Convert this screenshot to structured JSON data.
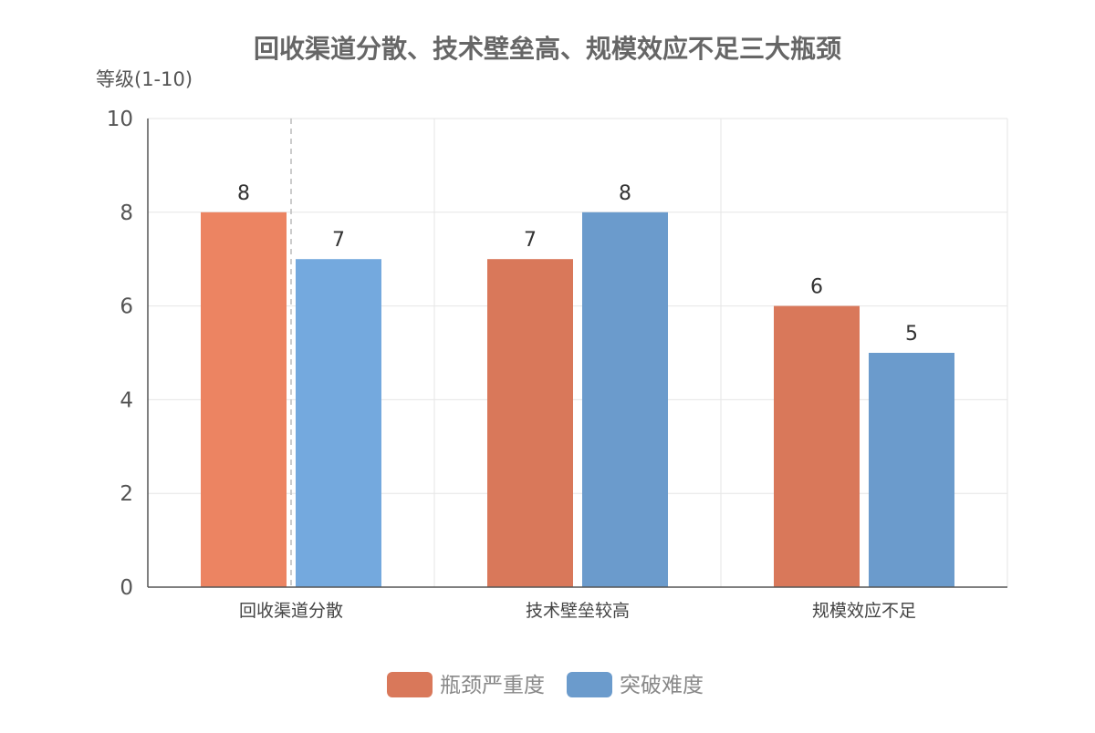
{
  "chart_data": {
    "type": "bar",
    "title": "回收渠道分散、技术壁垒高、规模效应不足三大瓶颈",
    "xlabel": "",
    "ylabel": "等级(1-10)",
    "ylim": [
      0,
      10
    ],
    "yticks": [
      0,
      2,
      4,
      6,
      8,
      10
    ],
    "categories": [
      "回收渠道分散",
      "技术壁垒较高",
      "规模效应不足"
    ],
    "series": [
      {
        "name": "瓶颈严重度",
        "values": [
          8,
          7,
          6
        ],
        "color": "#d9785a",
        "first_color": "#ec8462"
      },
      {
        "name": "突破难度",
        "values": [
          7,
          8,
          5
        ],
        "color": "#6b9bcc",
        "first_color": "#74a9de"
      }
    ],
    "legend": "bottom-center",
    "grid": true
  }
}
